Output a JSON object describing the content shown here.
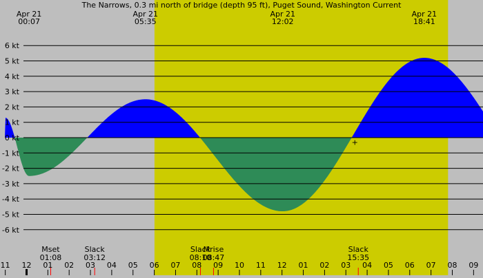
{
  "chart_data": {
    "type": "area",
    "title": "The Narrows, 0.3 mi north of bridge (depth 95 ft), Puget Sound, Washington Current",
    "xlabel": "",
    "ylabel": "",
    "unit": "kt",
    "ylim": [
      -6.5,
      6.5
    ],
    "y_ticks": [
      {
        "value": 6,
        "label": "6 kt"
      },
      {
        "value": 5,
        "label": "5 kt"
      },
      {
        "value": 4,
        "label": "4 kt"
      },
      {
        "value": 3,
        "label": "3 kt"
      },
      {
        "value": 2,
        "label": "2 kt"
      },
      {
        "value": 1,
        "label": "1 kt"
      },
      {
        "value": 0,
        "label": "0 kt"
      },
      {
        "value": -1,
        "label": "-1 kt"
      },
      {
        "value": -2,
        "label": "-2 kt"
      },
      {
        "value": -3,
        "label": "-3 kt"
      },
      {
        "value": -4,
        "label": "-4 kt"
      },
      {
        "value": -5,
        "label": "-5 kt"
      },
      {
        "value": -6,
        "label": "-6 kt"
      }
    ],
    "x_hours_visible": [
      -13.06,
      9.61
    ],
    "daylight_hours": [
      6.01,
      19.8
    ],
    "top_events": [
      {
        "date": "Apr 21",
        "time": "00:07",
        "hour": 0.117,
        "value": -2.5
      },
      {
        "date": "Apr 21",
        "time": "05:35",
        "hour": 5.583,
        "value": 2.5
      },
      {
        "date": "Apr 21",
        "time": "12:02",
        "hour": 12.033,
        "value": -4.8
      },
      {
        "date": "Apr 21",
        "time": "18:41",
        "hour": 18.683,
        "value": 5.2
      }
    ],
    "bottom_events": [
      {
        "label": "Mset",
        "time": "01:08",
        "hour": 1.133
      },
      {
        "label": "Slack",
        "time": "03:12",
        "hour": 3.2
      },
      {
        "label": "Slack",
        "time": "08:10",
        "hour": 8.167
      },
      {
        "label": "Mrise",
        "time": "08:47",
        "hour": 8.783
      },
      {
        "label": "Slack",
        "time": "15:35",
        "hour": 15.583
      }
    ],
    "x_tick_labels": [
      "11",
      "12",
      "01",
      "02",
      "03",
      "04",
      "05",
      "06",
      "07",
      "08",
      "09",
      "10",
      "11",
      "12",
      "01",
      "02",
      "03",
      "04",
      "05",
      "06",
      "07",
      "08",
      "09"
    ],
    "x_tick_hours": [
      -1,
      0,
      1,
      2,
      3,
      4,
      5,
      6,
      7,
      8,
      9,
      10,
      11,
      12,
      13,
      14,
      15,
      16,
      17,
      18,
      19,
      20,
      21
    ],
    "now_marker": {
      "label": "+",
      "hour": 15.583
    },
    "colors": {
      "background": "#bebebe",
      "daylight": "#cccc00",
      "flood": "#0000ff",
      "ebb": "#2e8b57",
      "grid": "#000000",
      "marker": "#ff0000"
    },
    "series": [
      {
        "name": "",
        "values": []
      }
    ]
  }
}
